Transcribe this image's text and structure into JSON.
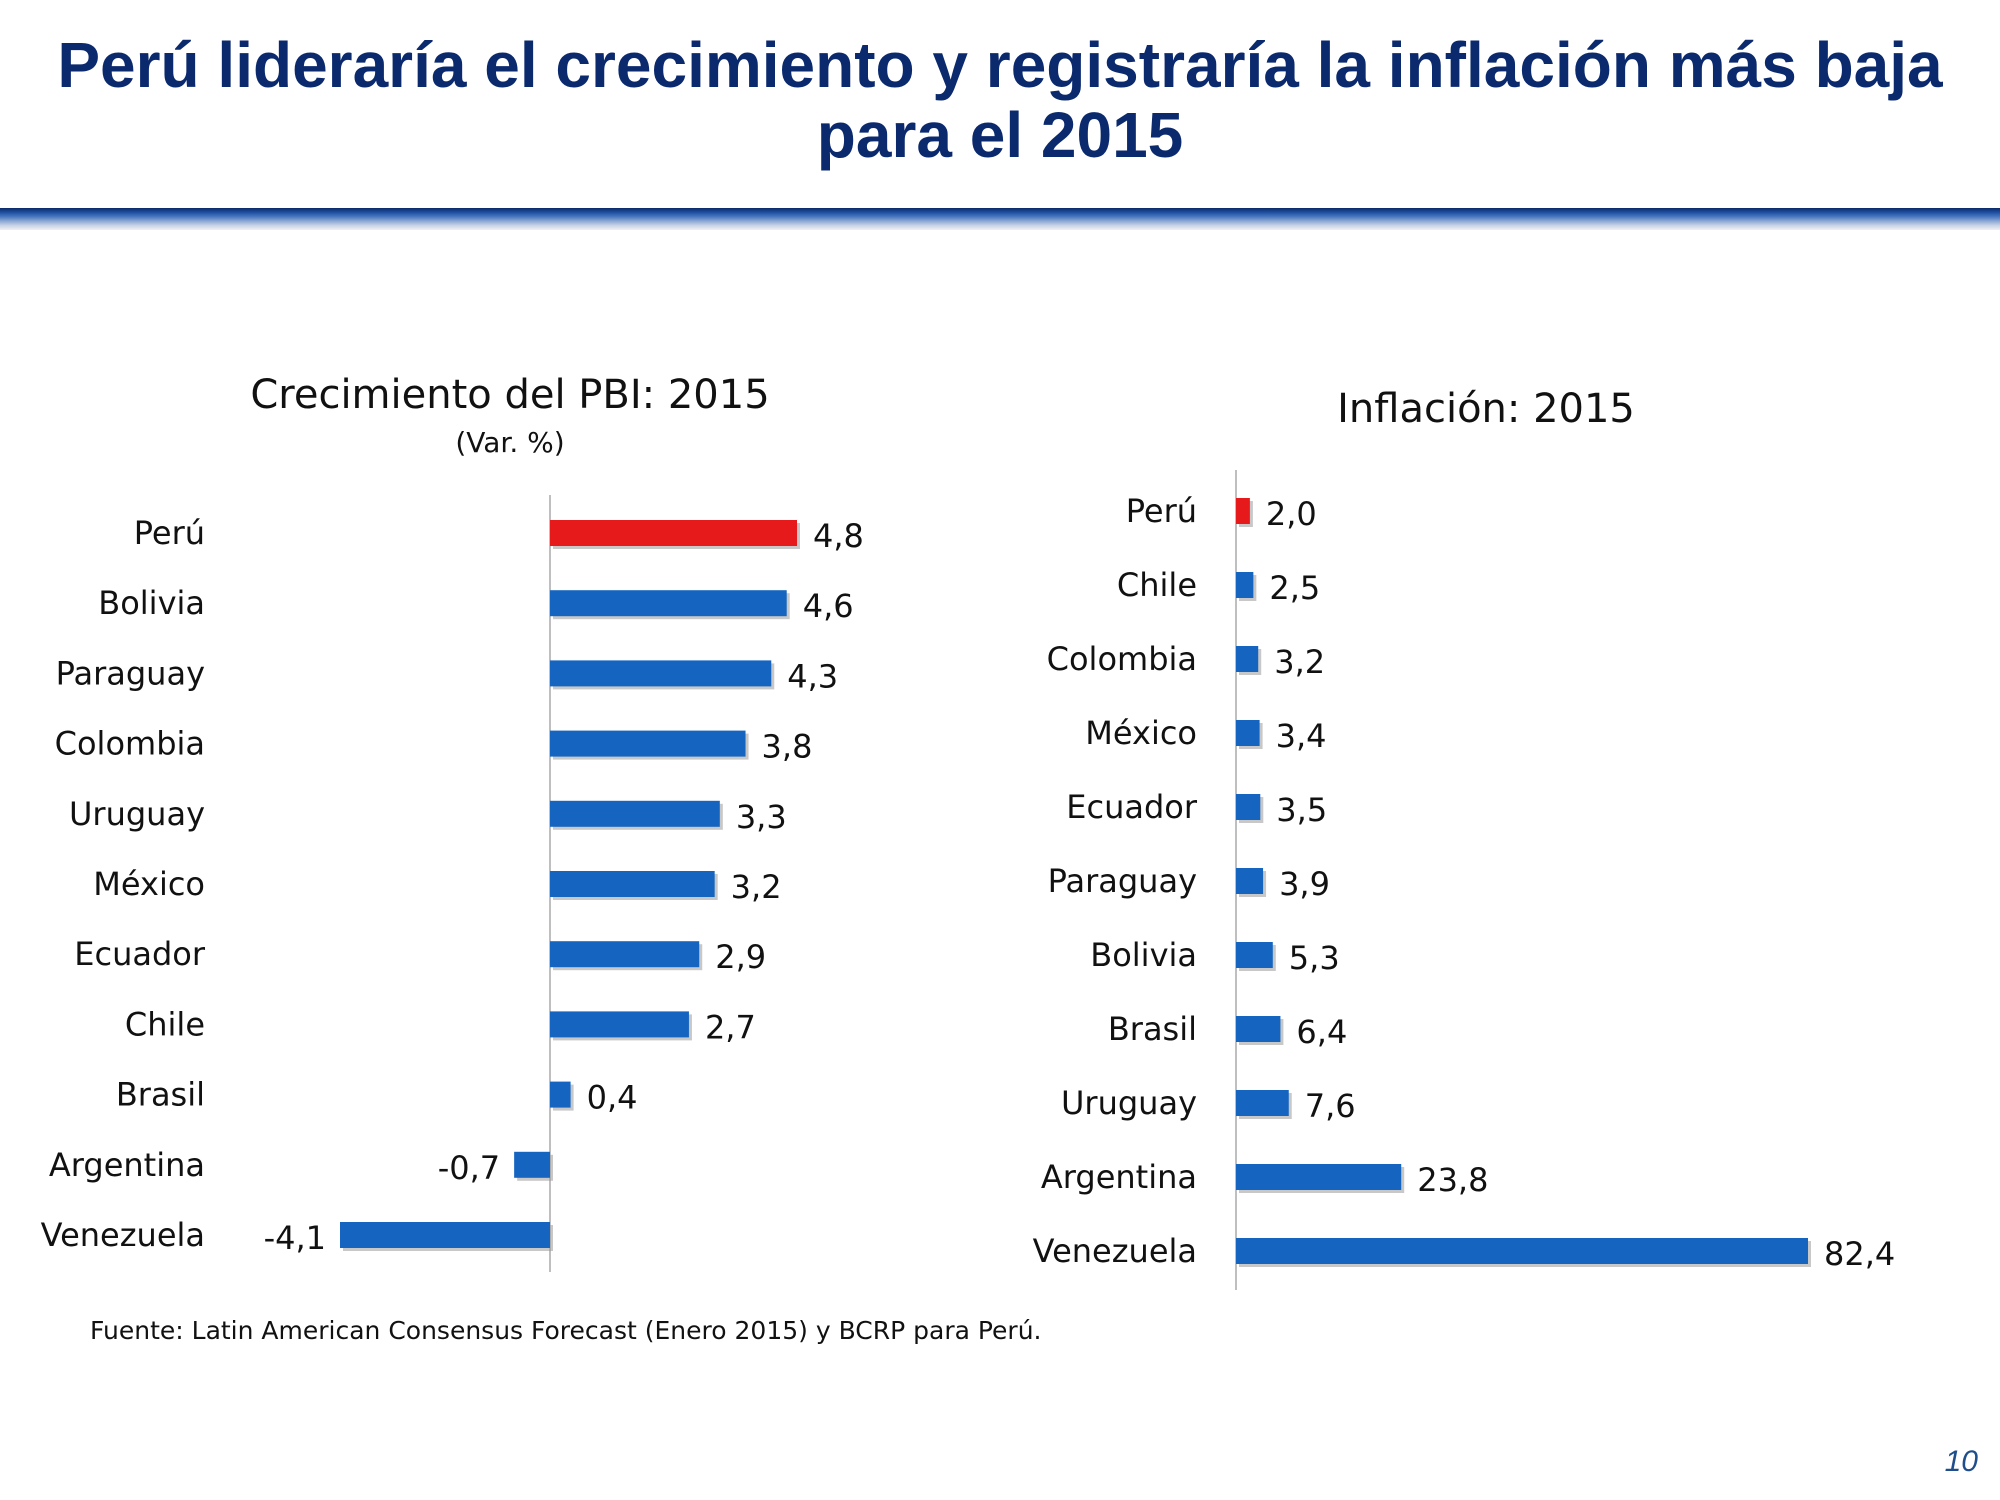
{
  "title": {
    "line1": "Perú lideraría el crecimiento y registraría la inflación más baja",
    "line2": "para el 2015"
  },
  "colors": {
    "highlight": "#E61A1A",
    "bar": "#1565C0",
    "axis": "#BFBFBF",
    "title": "#0B2A6E"
  },
  "chart_data": [
    {
      "type": "bar",
      "orientation": "horizontal",
      "title": "Crecimiento del PBI: 2015",
      "subtitle": "(Var. %)",
      "categories": [
        "Perú",
        "Bolivia",
        "Paraguay",
        "Colombia",
        "Uruguay",
        "México",
        "Ecuador",
        "Chile",
        "Brasil",
        "Argentina",
        "Venezuela"
      ],
      "values": [
        4.8,
        4.6,
        4.3,
        3.8,
        3.3,
        3.2,
        2.9,
        2.7,
        0.4,
        -0.7,
        -4.1
      ],
      "value_labels": [
        "4,8",
        "4,6",
        "4,3",
        "3,8",
        "3,3",
        "3,2",
        "2,9",
        "2,7",
        "0,4",
        "-0,7",
        "-4,1"
      ],
      "highlight_category": "Perú",
      "xlim": [
        -4.1,
        4.8
      ]
    },
    {
      "type": "bar",
      "orientation": "horizontal",
      "title": "Inflación: 2015",
      "categories": [
        "Perú",
        "Chile",
        "Colombia",
        "México",
        "Ecuador",
        "Paraguay",
        "Bolivia",
        "Brasil",
        "Uruguay",
        "Argentina",
        "Venezuela"
      ],
      "values": [
        2.0,
        2.5,
        3.2,
        3.4,
        3.5,
        3.9,
        5.3,
        6.4,
        7.6,
        23.8,
        82.4
      ],
      "value_labels": [
        "2,0",
        "2,5",
        "3,2",
        "3,4",
        "3,5",
        "3,9",
        "5,3",
        "6,4",
        "7,6",
        "23,8",
        "82,4"
      ],
      "highlight_category": "Perú",
      "xlim": [
        0,
        82.4
      ]
    }
  ],
  "source": "Fuente: Latin American Consensus Forecast (Enero 2015) y BCRP para Perú.",
  "page_number": "10"
}
